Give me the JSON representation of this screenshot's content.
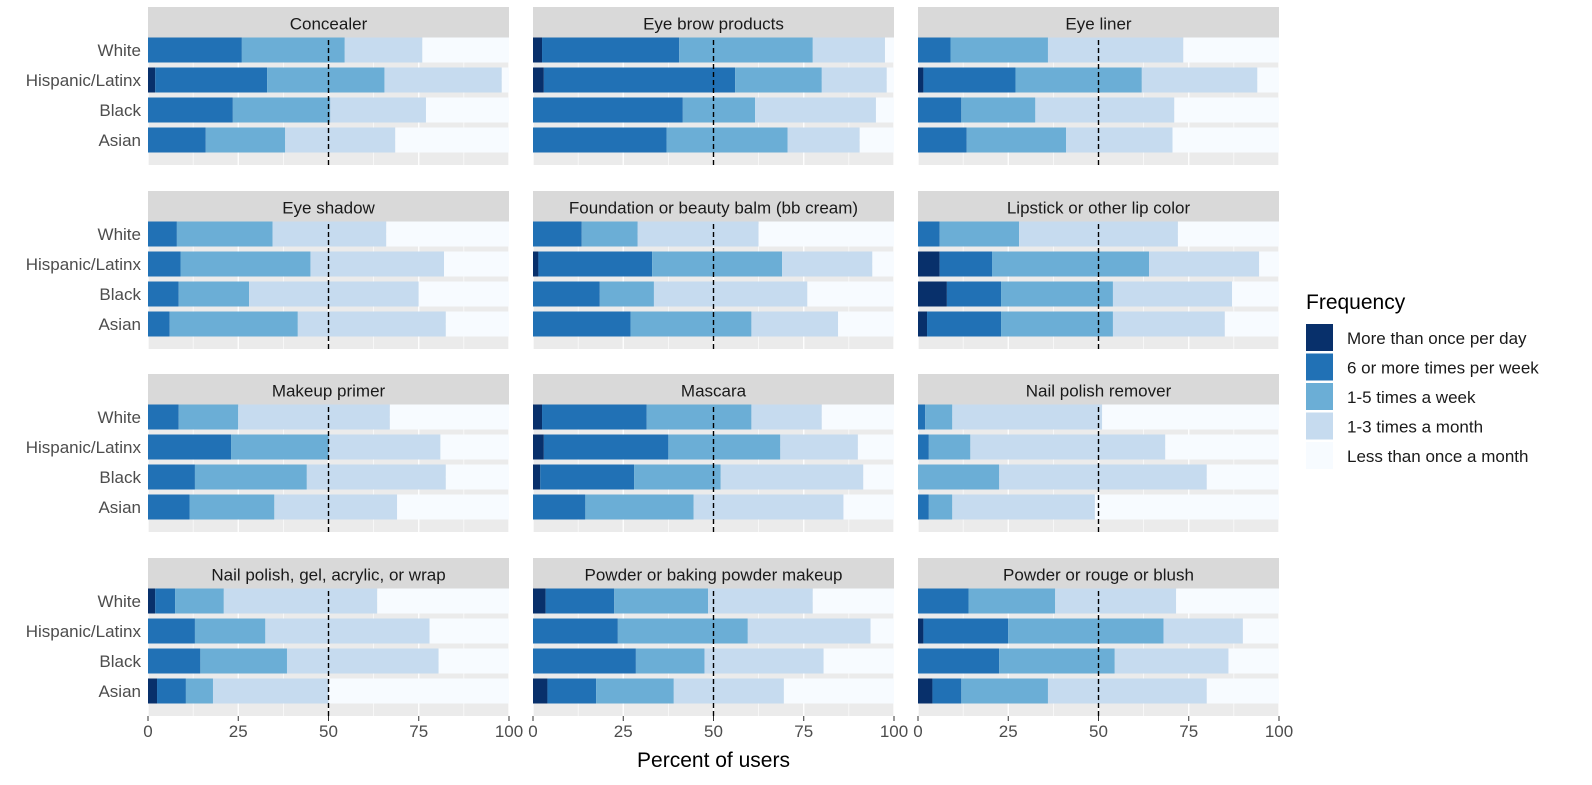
{
  "chart_data": {
    "type": "bar",
    "orientation": "horizontal",
    "stacked": true,
    "facet_layout": "4 rows x 3 columns",
    "xlabel": "Percent of users",
    "xlim": [
      0,
      100
    ],
    "xticks": [
      "0",
      "25",
      "50",
      "75",
      "100"
    ],
    "reference_line": {
      "x": 50,
      "style": "dashed",
      "color": "#000000"
    },
    "grid": true,
    "categories": [
      "White",
      "Hispanic/Latinx",
      "Black",
      "Asian"
    ],
    "legend": {
      "title": "Frequency",
      "position": "right",
      "entries": [
        {
          "label": "More than once per day",
          "color": "#08306B"
        },
        {
          "label": "6 or more times per week",
          "color": "#2171B5"
        },
        {
          "label": "1-5 times a week",
          "color": "#6BAED6"
        },
        {
          "label": "1-3 times a month",
          "color": "#C6DBEF"
        },
        {
          "label": "Less than once a month",
          "color": "#F7FBFF"
        }
      ]
    },
    "panels": [
      {
        "title": "Concealer",
        "values": [
          [
            0,
            26,
            28.5,
            21.5,
            24
          ],
          [
            2,
            31,
            32.5,
            32.5,
            2
          ],
          [
            0,
            23.5,
            27,
            26.5,
            23
          ],
          [
            0,
            16,
            22,
            30.5,
            31.5
          ]
        ]
      },
      {
        "title": "Eye brow products",
        "values": [
          [
            2.5,
            38,
            37,
            20,
            2.5
          ],
          [
            3,
            53,
            24,
            18,
            2
          ],
          [
            0,
            41.5,
            20,
            33.5,
            5
          ],
          [
            0,
            37,
            33.5,
            20,
            9.5
          ]
        ]
      },
      {
        "title": "Eye liner",
        "values": [
          [
            0,
            9,
            27,
            37.5,
            26.5
          ],
          [
            1.5,
            25.5,
            35,
            32,
            6
          ],
          [
            0,
            12,
            20.5,
            38.5,
            29
          ],
          [
            0,
            13.5,
            27.5,
            29.5,
            29.5
          ]
        ]
      },
      {
        "title": "Eye shadow",
        "values": [
          [
            0,
            8,
            26.5,
            31.5,
            34
          ],
          [
            0,
            9,
            36,
            37,
            18
          ],
          [
            0,
            8.5,
            19.5,
            47,
            25
          ],
          [
            0,
            6,
            35.5,
            41,
            17.5
          ]
        ]
      },
      {
        "title": "Foundation or beauty balm (bb cream)",
        "values": [
          [
            0,
            13.5,
            15.5,
            33.5,
            37.5
          ],
          [
            1.5,
            31.5,
            36,
            25,
            6
          ],
          [
            0,
            18.5,
            15,
            42.5,
            24
          ],
          [
            0,
            27,
            33.5,
            24,
            15.5
          ]
        ]
      },
      {
        "title": "Lipstick or other lip color",
        "values": [
          [
            0,
            6,
            22,
            44,
            28
          ],
          [
            6,
            14.5,
            43.5,
            30.5,
            5.5
          ],
          [
            8,
            15,
            31,
            33,
            13
          ],
          [
            2.5,
            20.5,
            31,
            31,
            15
          ]
        ]
      },
      {
        "title": "Makeup primer",
        "values": [
          [
            0,
            8.5,
            16.5,
            42,
            33
          ],
          [
            0,
            23,
            27,
            31,
            19
          ],
          [
            0,
            13,
            31,
            38.5,
            17.5
          ],
          [
            0,
            11.5,
            23.5,
            34,
            31
          ]
        ]
      },
      {
        "title": "Mascara",
        "values": [
          [
            2.5,
            29,
            29,
            19.5,
            20
          ],
          [
            3,
            34.5,
            31,
            21.5,
            10
          ],
          [
            2,
            26,
            24,
            39.5,
            8.5
          ],
          [
            0,
            14.5,
            30,
            41.5,
            14
          ]
        ]
      },
      {
        "title": "Nail polish remover",
        "values": [
          [
            0,
            2,
            7.5,
            41.5,
            49
          ],
          [
            0,
            3,
            11.5,
            54,
            31.5
          ],
          [
            0,
            0,
            22.5,
            57.5,
            20
          ],
          [
            0,
            3,
            6.5,
            39.5,
            51
          ]
        ]
      },
      {
        "title": "Nail polish, gel, acrylic, or wrap",
        "values": [
          [
            2,
            5.5,
            13.5,
            42.5,
            36.5
          ],
          [
            0,
            13,
            19.5,
            45.5,
            22
          ],
          [
            0,
            14.5,
            24,
            42,
            19.5
          ],
          [
            2.5,
            8,
            7.5,
            32,
            50
          ]
        ]
      },
      {
        "title": "Powder or baking powder makeup",
        "values": [
          [
            3.5,
            19,
            26,
            29,
            22.5
          ],
          [
            0,
            23.5,
            36,
            34,
            6.5
          ],
          [
            0,
            28.5,
            19,
            33,
            19.5
          ],
          [
            4,
            13.5,
            21.5,
            30.5,
            30.5
          ]
        ]
      },
      {
        "title": "Powder or rouge or blush",
        "values": [
          [
            0,
            14,
            24,
            33.5,
            28.5
          ],
          [
            1.5,
            23.5,
            43,
            22,
            10
          ],
          [
            0,
            22.5,
            32,
            31.5,
            14
          ],
          [
            4,
            8,
            24,
            44,
            20
          ]
        ]
      }
    ]
  }
}
